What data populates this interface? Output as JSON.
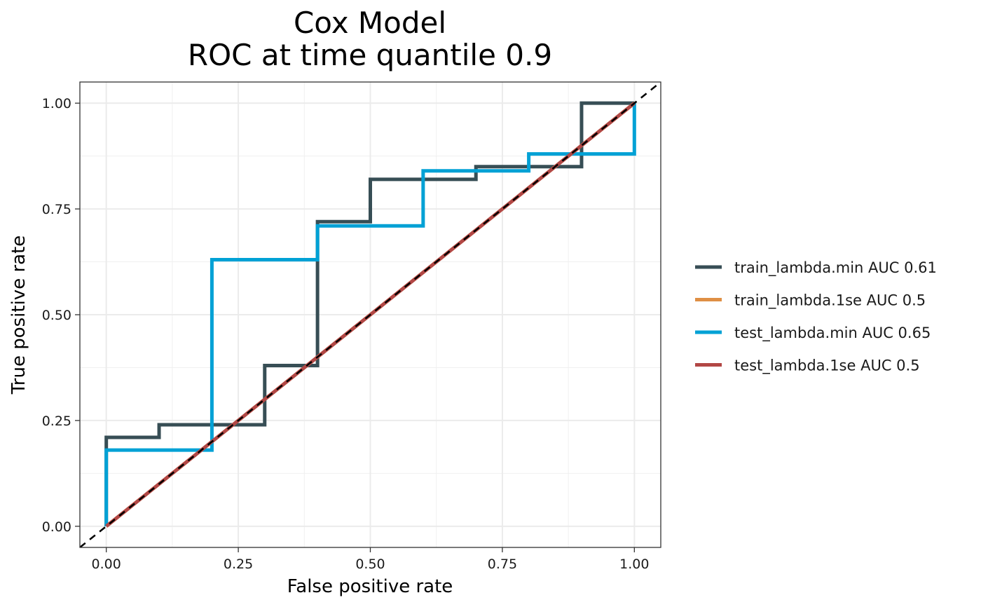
{
  "chart_data": {
    "type": "line",
    "title": [
      "Cox Model",
      "ROC at time quantile 0.9"
    ],
    "xlabel": "False positive rate",
    "ylabel": "True positive rate",
    "xlim": [
      -0.05,
      1.05
    ],
    "ylim": [
      -0.05,
      1.05
    ],
    "x_ticks": [
      0.0,
      0.25,
      0.5,
      0.75,
      1.0
    ],
    "x_tick_labels": [
      "0.00",
      "0.25",
      "0.50",
      "0.75",
      "1.00"
    ],
    "y_ticks": [
      0.0,
      0.25,
      0.5,
      0.75,
      1.0
    ],
    "y_tick_labels": [
      "0.00",
      "0.25",
      "0.50",
      "0.75",
      "1.00"
    ],
    "grid": true,
    "legend_position": "right",
    "reference_line": {
      "name": "chance diagonal",
      "style": "dashed",
      "color": "#000000"
    },
    "series": [
      {
        "name": "train_lambda.min AUC 0.61",
        "color": "#374E55",
        "x": [
          0,
          0,
          0.1,
          0.1,
          0.2,
          0.2,
          0.3,
          0.3,
          0.4,
          0.4,
          0.5,
          0.5,
          0.7,
          0.7,
          0.8,
          0.8,
          0.9,
          0.9,
          1.0
        ],
        "y": [
          0,
          0.21,
          0.21,
          0.24,
          0.24,
          0.24,
          0.24,
          0.38,
          0.38,
          0.72,
          0.72,
          0.82,
          0.82,
          0.85,
          0.85,
          0.85,
          0.85,
          1.0,
          1.0
        ]
      },
      {
        "name": "train_lambda.1se AUC 0.5",
        "color": "#DF8F44",
        "x": [
          0,
          1
        ],
        "y": [
          0,
          1
        ]
      },
      {
        "name": "test_lambda.min AUC 0.65",
        "color": "#00A1D5",
        "x": [
          0,
          0,
          0.2,
          0.2,
          0.4,
          0.4,
          0.6,
          0.6,
          0.8,
          0.8,
          1.0,
          1.0
        ],
        "y": [
          0,
          0.18,
          0.18,
          0.63,
          0.63,
          0.71,
          0.71,
          0.84,
          0.84,
          0.88,
          0.88,
          1.0
        ]
      },
      {
        "name": "test_lambda.1se AUC 0.5",
        "color": "#B24745",
        "x": [
          0,
          1
        ],
        "y": [
          0,
          1
        ]
      }
    ]
  }
}
